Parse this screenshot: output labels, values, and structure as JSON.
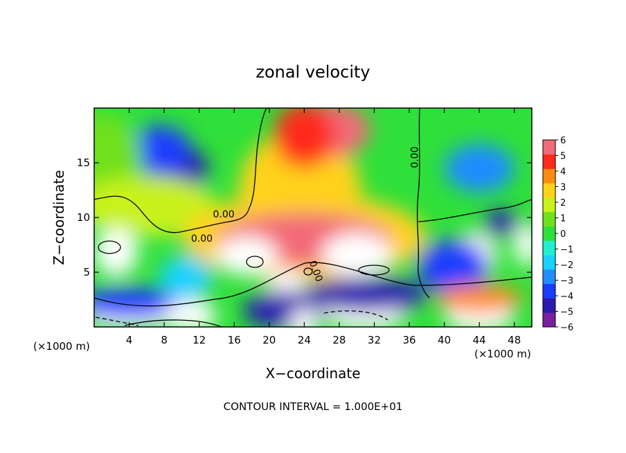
{
  "chart_data": {
    "type": "heatmap",
    "title": "zonal velocity",
    "xlabel": "X−coordinate",
    "ylabel": "Z−coordinate",
    "x_unit_left": "(×1000 m)",
    "x_unit_right": "(×1000 m)",
    "footer": "CONTOUR INTERVAL = 1.000E+01",
    "xlim": [
      0,
      50
    ],
    "ylim": [
      0,
      20
    ],
    "x_ticks": [
      {
        "value": 4,
        "label": "4"
      },
      {
        "value": 8,
        "label": "8"
      },
      {
        "value": 12,
        "label": "12"
      },
      {
        "value": 16,
        "label": "16"
      },
      {
        "value": 20,
        "label": "20"
      },
      {
        "value": 24,
        "label": "24"
      },
      {
        "value": 28,
        "label": "28"
      },
      {
        "value": 32,
        "label": "32"
      },
      {
        "value": 36,
        "label": "36"
      },
      {
        "value": 40,
        "label": "40"
      },
      {
        "value": 44,
        "label": "44"
      },
      {
        "value": 48,
        "label": "48"
      }
    ],
    "y_ticks": [
      {
        "value": 5,
        "label": "5"
      },
      {
        "value": 10,
        "label": "10"
      },
      {
        "value": 15,
        "label": "15"
      }
    ],
    "colorbar": {
      "min": -6,
      "max": 6,
      "labels": [
        "6",
        "5",
        "4",
        "3",
        "2",
        "1",
        "0",
        "−1",
        "−2",
        "−3",
        "−4",
        "−5",
        "−6"
      ],
      "colors": [
        "#7a1fa0",
        "#2a1ab0",
        "#1a3cff",
        "#1f8cff",
        "#19d2ff",
        "#20f0cf",
        "#2fe03a",
        "#6fe01c",
        "#c8f21a",
        "#ffd21a",
        "#ff8c10",
        "#ff2a1a",
        "#f26a78"
      ]
    },
    "contour_labels": [
      {
        "text": "0.00",
        "x": 14.8,
        "y": 10.0
      },
      {
        "text": "0.00",
        "x": 12.3,
        "y": 7.8
      },
      {
        "text": "0.00",
        "x": 37.0,
        "y": 15.5
      },
      {
        "text": "0.00",
        "x": 25.0,
        "y": 5.0
      }
    ],
    "field_features": [
      {
        "x": 9.5,
        "y": 14.3,
        "value": -4.5,
        "rx": 3.5,
        "ry": 2.4
      },
      {
        "x": 7.5,
        "y": 16.2,
        "value": -3.5,
        "rx": 3.5,
        "ry": 2.2
      },
      {
        "x": 44,
        "y": 14.5,
        "value": -2.8,
        "rx": 4.0,
        "ry": 2.2
      },
      {
        "x": 0.5,
        "y": 15.5,
        "value": 1.0,
        "rx": 5.0,
        "ry": 4.0
      },
      {
        "x": 6,
        "y": 11,
        "value": 1.4,
        "rx": 8.0,
        "ry": 2.8
      },
      {
        "x": 23.5,
        "y": 12.5,
        "value": 3.2,
        "rx": 7.0,
        "ry": 5.5
      },
      {
        "x": 27,
        "y": 18,
        "value": 5.6,
        "rx": 4.5,
        "ry": 2.5
      },
      {
        "x": 24,
        "y": 17.5,
        "value": 4.6,
        "rx": 3.5,
        "ry": 3.0
      },
      {
        "x": 24,
        "y": 8.2,
        "value": 2.5,
        "rx": 14.0,
        "ry": 4.0
      },
      {
        "x": 24,
        "y": 8.0,
        "value": 5.4,
        "rx": 10.0,
        "ry": 2.5
      },
      {
        "x": 17.5,
        "y": 6.5,
        "value": 9.0,
        "rx": 3.5,
        "ry": 1.8
      },
      {
        "x": 30,
        "y": 6.6,
        "value": 9.0,
        "rx": 4.0,
        "ry": 2.0
      },
      {
        "x": 2.5,
        "y": 6.8,
        "value": 8.0,
        "rx": 2.5,
        "ry": 2.2
      },
      {
        "x": 49.5,
        "y": 7.5,
        "value": 7.0,
        "rx": 1.5,
        "ry": 2.0
      },
      {
        "x": 43.5,
        "y": 6.5,
        "value": 9.0,
        "rx": 2.5,
        "ry": 2.2
      },
      {
        "x": 41,
        "y": 5.5,
        "value": -4.0,
        "rx": 4.0,
        "ry": 2.5
      },
      {
        "x": 46.5,
        "y": 9.5,
        "value": -4.5,
        "rx": 2.0,
        "ry": 1.2
      },
      {
        "x": 22,
        "y": 2.3,
        "value": 9.0,
        "rx": 2.5,
        "ry": 3.0
      },
      {
        "x": 22,
        "y": 1.5,
        "value": -5.0,
        "rx": 5.0,
        "ry": 1.8
      },
      {
        "x": 31,
        "y": 1.5,
        "value": 9.0,
        "rx": 5.0,
        "ry": 1.8
      },
      {
        "x": 31,
        "y": 3.0,
        "value": -4.5,
        "rx": 7.0,
        "ry": 1.6
      },
      {
        "x": 4,
        "y": 0.7,
        "value": 9.0,
        "rx": 5.0,
        "ry": 0.9
      },
      {
        "x": 4,
        "y": 2.2,
        "value": -4.0,
        "rx": 6.0,
        "ry": 1.4
      },
      {
        "x": 11,
        "y": 1.0,
        "value": 6.5,
        "rx": 3.0,
        "ry": 1.5
      },
      {
        "x": 24,
        "y": 0.3,
        "value": 9.0,
        "rx": 1.5,
        "ry": 1.5
      },
      {
        "x": 44,
        "y": 1.0,
        "value": 9.0,
        "rx": 4.0,
        "ry": 1.5
      },
      {
        "x": 44,
        "y": 2.6,
        "value": 4.0,
        "rx": 5.0,
        "ry": 1.3
      },
      {
        "x": 35.5,
        "y": 2.5,
        "value": -4.5,
        "rx": 1.2,
        "ry": 1.2
      },
      {
        "x": 10.5,
        "y": 4.5,
        "value": -1.8,
        "rx": 3.0,
        "ry": 2.0
      }
    ]
  }
}
